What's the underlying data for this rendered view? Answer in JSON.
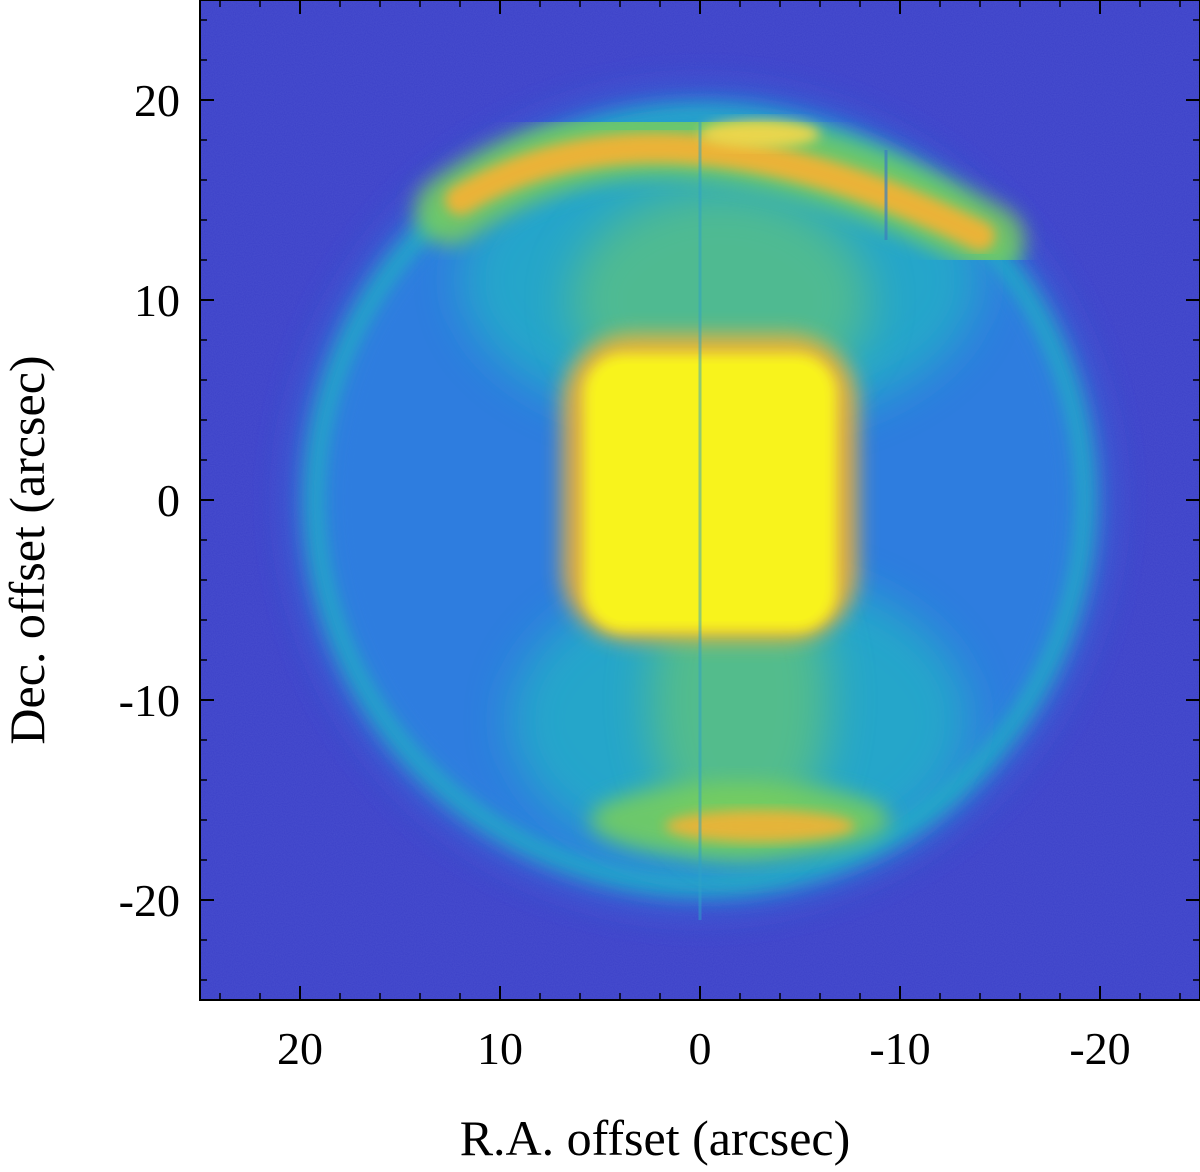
{
  "chart_data": {
    "type": "heatmap",
    "title": "",
    "xlabel": "R.A. offset (arcsec)",
    "ylabel": "Dec. offset (arcsec)",
    "xlim": [
      25,
      -25
    ],
    "ylim": [
      -25,
      25
    ],
    "x_ticks": [
      20,
      10,
      0,
      -10,
      -20
    ],
    "x_tick_labels": [
      "20",
      "10",
      "0",
      "-10",
      "-20"
    ],
    "y_ticks": [
      20,
      10,
      0,
      -10,
      -20
    ],
    "y_tick_labels": [
      "20",
      "10",
      "0",
      "-10",
      "-20"
    ],
    "x_minor_step": 2,
    "y_minor_step": 2,
    "colormap": [
      "#3a3fc6",
      "#2f7ee0",
      "#22b4c4",
      "#79cf5a",
      "#f2b235",
      "#f8f31c"
    ],
    "features": {
      "background_level": "#3b40c8",
      "ring_center": [
        0,
        0
      ],
      "ring_radius": 19.5,
      "core_center": [
        -0.5,
        0.5
      ],
      "core_half_width": 6.3,
      "core_color": "#f8f31c",
      "north_arc_center": [
        -2,
        18
      ],
      "south_arc_center": [
        -2,
        -16
      ],
      "arc_color": "#f2b235"
    }
  }
}
